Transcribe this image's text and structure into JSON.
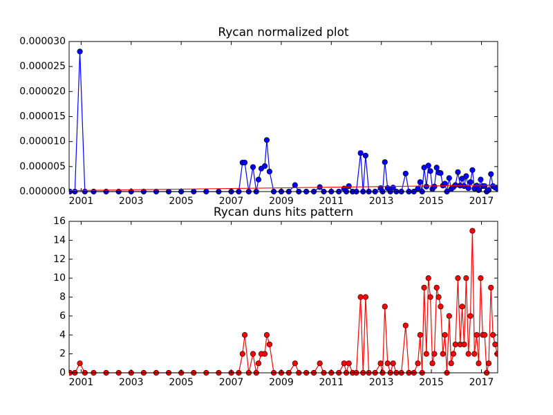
{
  "chart_data": [
    {
      "type": "line",
      "title": "Rycan normalized plot",
      "x": [
        2000.55,
        2000.75,
        2000.95,
        2001.15,
        2001.5,
        2002,
        2002.5,
        2003,
        2003.5,
        2004,
        2004.5,
        2005,
        2005.5,
        2006,
        2006.5,
        2007,
        2007.3,
        2007.45,
        2007.54,
        2007.7,
        2007.87,
        2008.0,
        2008.09,
        2008.2,
        2008.34,
        2008.42,
        2008.53,
        2008.7,
        2009.0,
        2009.3,
        2009.55,
        2009.7,
        2010.0,
        2010.3,
        2010.54,
        2010.7,
        2011.0,
        2011.3,
        2011.51,
        2011.6,
        2011.7,
        2011.85,
        2012.0,
        2012.17,
        2012.27,
        2012.37,
        2012.5,
        2012.75,
        2012.97,
        2013.05,
        2013.14,
        2013.25,
        2013.36,
        2013.47,
        2013.6,
        2013.8,
        2013.97,
        2014.1,
        2014.3,
        2014.46,
        2014.55,
        2014.63,
        2014.71,
        2014.8,
        2014.88,
        2014.96,
        2015.04,
        2015.12,
        2015.21,
        2015.29,
        2015.37,
        2015.46,
        2015.54,
        2015.62,
        2015.71,
        2015.79,
        2015.88,
        2015.96,
        2016.06,
        2016.15,
        2016.23,
        2016.31,
        2016.39,
        2016.48,
        2016.56,
        2016.64,
        2016.72,
        2016.81,
        2016.89,
        2016.97,
        2017.05,
        2017.13,
        2017.21,
        2017.29,
        2017.38,
        2017.46,
        2017.55,
        2017.63
      ],
      "series": [
        {
          "color": "#0000ff",
          "marker": true,
          "values": [
            0,
            0,
            2.8e-05,
            0,
            0,
            0,
            0,
            0,
            0,
            0,
            0,
            0,
            0,
            0,
            0,
            0,
            0,
            5.8e-06,
            5.8e-06,
            0,
            4.9e-06,
            0,
            2.4e-06,
            4.6e-06,
            5.1e-06,
            1.03e-05,
            4e-06,
            0,
            0,
            0,
            1.3e-06,
            0,
            0,
            0,
            9e-07,
            0,
            0,
            0,
            6e-07,
            0,
            1.1e-06,
            0,
            0,
            7.7e-06,
            0,
            7.2e-06,
            0,
            0,
            7e-07,
            0,
            5.9e-06,
            7e-07,
            0,
            8e-07,
            0,
            0,
            3.6e-06,
            0,
            0,
            6e-07,
            1.9e-06,
            0,
            4.8e-06,
            1e-06,
            5.2e-06,
            4.1e-06,
            5e-07,
            1e-06,
            4.8e-06,
            3.8e-06,
            3.7e-06,
            1.2e-06,
            1.6e-06,
            0,
            2.7e-06,
            5e-07,
            9e-07,
            1.3e-06,
            3.9e-06,
            1.2e-06,
            2.6e-06,
            1.1e-06,
            3.1e-06,
            7e-07,
            1.9e-06,
            4.3e-06,
            6e-07,
            1.2e-06,
            3e-07,
            2.4e-06,
            1.1e-06,
            1.1e-06,
            0,
            3e-07,
            3.5e-06,
            1.1e-06,
            8e-07,
            6e-07
          ]
        },
        {
          "color": "#ff0000",
          "marker": false,
          "x": [
            2000.55,
            2017.63
          ],
          "values": [
            2e-07,
            1.3e-06
          ]
        }
      ],
      "xlim": [
        2000.52,
        2017.65
      ],
      "xticks": [
        2001,
        2003,
        2005,
        2007,
        2009,
        2011,
        2013,
        2015,
        2017
      ],
      "ylim": [
        0,
        3e-05
      ],
      "yticks": [
        {
          "value": 0,
          "label": "0.000000"
        },
        {
          "value": 5e-06,
          "label": "0.000005"
        },
        {
          "value": 1e-05,
          "label": "0.000010"
        },
        {
          "value": 1.5e-05,
          "label": "0.000015"
        },
        {
          "value": 2e-05,
          "label": "0.000020"
        },
        {
          "value": 2.5e-05,
          "label": "0.000025"
        },
        {
          "value": 3e-05,
          "label": "0.000030"
        }
      ]
    },
    {
      "type": "line",
      "title": "Rycan duns hits pattern",
      "x": [
        2000.55,
        2000.75,
        2000.95,
        2001.15,
        2001.5,
        2002,
        2002.5,
        2003,
        2003.5,
        2004,
        2004.5,
        2005,
        2005.5,
        2006,
        2006.5,
        2007,
        2007.3,
        2007.45,
        2007.54,
        2007.7,
        2007.87,
        2008.0,
        2008.09,
        2008.2,
        2008.34,
        2008.42,
        2008.53,
        2008.7,
        2009.0,
        2009.3,
        2009.55,
        2009.7,
        2010.0,
        2010.3,
        2010.54,
        2010.7,
        2011.0,
        2011.3,
        2011.51,
        2011.6,
        2011.7,
        2011.85,
        2012.0,
        2012.17,
        2012.27,
        2012.37,
        2012.5,
        2012.75,
        2012.97,
        2013.05,
        2013.14,
        2013.25,
        2013.36,
        2013.47,
        2013.6,
        2013.8,
        2013.97,
        2014.1,
        2014.3,
        2014.46,
        2014.55,
        2014.63,
        2014.71,
        2014.8,
        2014.88,
        2014.96,
        2015.04,
        2015.12,
        2015.21,
        2015.29,
        2015.37,
        2015.46,
        2015.54,
        2015.62,
        2015.71,
        2015.79,
        2015.88,
        2015.96,
        2016.06,
        2016.15,
        2016.23,
        2016.31,
        2016.39,
        2016.48,
        2016.56,
        2016.64,
        2016.72,
        2016.81,
        2016.89,
        2016.97,
        2017.05,
        2017.13,
        2017.21,
        2017.29,
        2017.38,
        2017.46,
        2017.55,
        2017.63
      ],
      "series": [
        {
          "color": "#ff0000",
          "marker": true,
          "values": [
            0,
            0,
            1,
            0,
            0,
            0,
            0,
            0,
            0,
            0,
            0,
            0,
            0,
            0,
            0,
            0,
            0,
            2,
            4,
            0,
            2,
            0,
            1,
            2,
            2,
            4,
            3,
            0,
            0,
            0,
            1,
            0,
            0,
            0,
            1,
            0,
            0,
            0,
            1,
            0,
            1,
            0,
            0,
            8,
            0,
            8,
            0,
            0,
            1,
            0,
            7,
            1,
            0,
            1,
            0,
            0,
            5,
            0,
            0,
            1,
            4,
            0,
            9,
            2,
            10,
            8,
            1,
            2,
            9,
            8,
            7,
            2,
            4,
            0,
            6,
            1,
            2,
            3,
            10,
            3,
            7,
            3,
            10,
            2,
            6,
            15,
            2,
            4,
            1,
            10,
            4,
            4,
            0,
            1,
            9,
            4,
            3,
            2
          ]
        }
      ],
      "xlim": [
        2000.52,
        2017.65
      ],
      "xticks": [
        2001,
        2003,
        2005,
        2007,
        2009,
        2011,
        2013,
        2015,
        2017
      ],
      "ylim": [
        0,
        16
      ],
      "yticks": [
        0,
        2,
        4,
        6,
        8,
        10,
        12,
        14,
        16
      ]
    }
  ]
}
